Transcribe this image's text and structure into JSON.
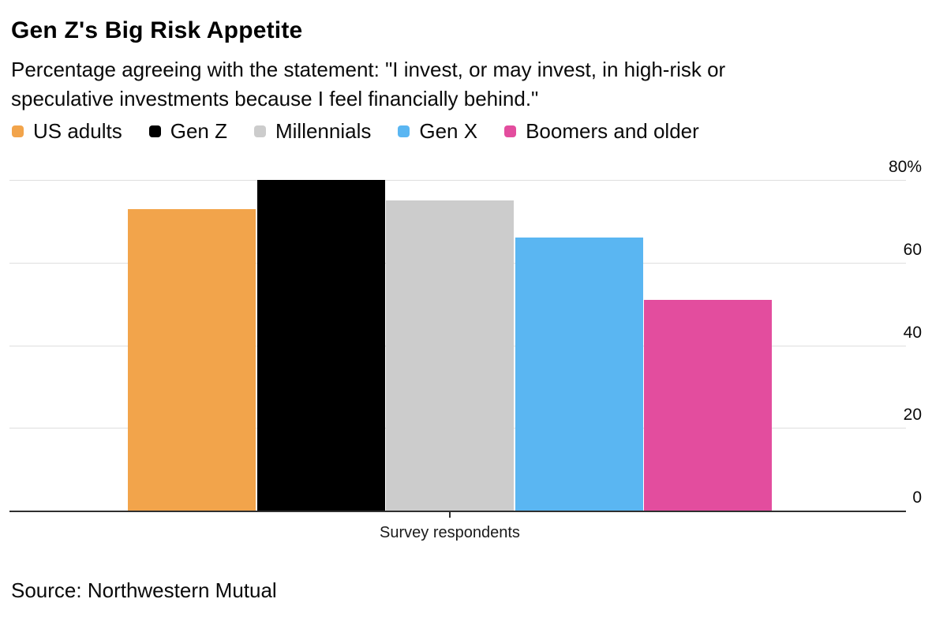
{
  "chart_data": {
    "type": "bar",
    "title": "Gen Z's Big Risk Appetite",
    "subtitle": "Percentage agreeing with the statement: \"I invest, or may invest, in high-risk or speculative investments because I feel financially behind.\"",
    "subtitle_lines": [
      "Percentage agreeing with the statement: \"I invest, or may invest, in high-risk or",
      "speculative investments because I feel financially behind.\""
    ],
    "categories": [
      "Survey respondents"
    ],
    "series": [
      {
        "name": "US adults",
        "color": "#F2A44B",
        "values": [
          73
        ]
      },
      {
        "name": "Gen Z",
        "color": "#000000",
        "values": [
          80
        ]
      },
      {
        "name": "Millennials",
        "color": "#CCCCCC",
        "values": [
          75
        ]
      },
      {
        "name": "Gen X",
        "color": "#5AB6F2",
        "values": [
          66
        ]
      },
      {
        "name": "Boomers and older",
        "color": "#E34D9E",
        "values": [
          51
        ]
      }
    ],
    "ylim": [
      0,
      80
    ],
    "yticks": [
      {
        "value": 0,
        "label": "0"
      },
      {
        "value": 20,
        "label": "20"
      },
      {
        "value": 40,
        "label": "40"
      },
      {
        "value": 60,
        "label": "60"
      },
      {
        "value": 80,
        "label": "80%"
      }
    ],
    "xlabel": "Survey respondents",
    "grid": true,
    "legend_position": "top",
    "source": "Source: Northwestern Mutual",
    "colors": {
      "background": "#FFFFFF",
      "gridline": "#DEDEDE",
      "axis": "#2F2F2F",
      "text": "#0A0A0A"
    }
  }
}
